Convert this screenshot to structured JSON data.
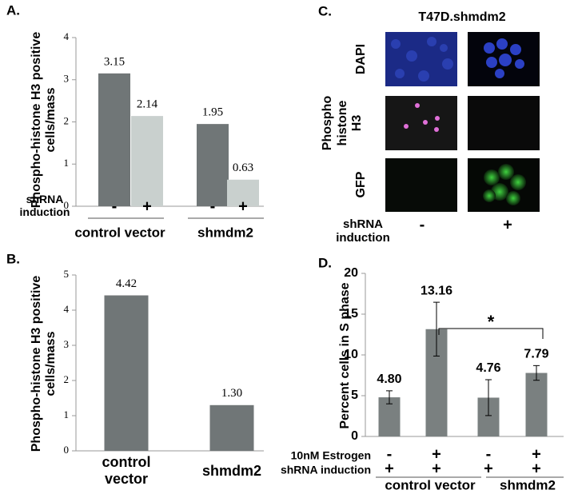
{
  "chart_data": [
    {
      "type": "bar",
      "panel": "A.",
      "ylabel": "Phospho-histone H3 positive cells/mass",
      "categories": [
        "control vector",
        "shmdm2"
      ],
      "row_label": "shRNA induction",
      "series": [
        {
          "name": "-",
          "color": "#707677",
          "values": [
            3.15,
            1.95
          ]
        },
        {
          "name": "+",
          "color": "#c9d0ce",
          "values": [
            2.14,
            0.63
          ]
        }
      ],
      "ylim": [
        0,
        4
      ],
      "yticks": [
        0,
        1,
        2,
        3,
        4
      ]
    },
    {
      "type": "bar",
      "panel": "B.",
      "ylabel": "Phospho-histone H3 positive cells/mass",
      "categories": [
        "control vector",
        "shmdm2"
      ],
      "values": [
        4.42,
        1.3
      ],
      "value_labels": [
        "4.42",
        "1.30"
      ],
      "color": "#707677",
      "ylim": [
        0,
        5
      ],
      "yticks": [
        0,
        1,
        2,
        3,
        4,
        5
      ]
    },
    {
      "type": "bar",
      "panel": "D.",
      "ylabel": "Percent cells in S phase",
      "values": [
        4.8,
        13.16,
        4.76,
        7.79
      ],
      "value_labels": [
        "4.80",
        "13.16",
        "4.76",
        "7.79"
      ],
      "errors": [
        0.8,
        3.3,
        2.2,
        0.9
      ],
      "color": "#7a8080",
      "rows": [
        {
          "label": "10nM Estrogen",
          "marks": [
            "-",
            "+",
            "-",
            "+"
          ]
        },
        {
          "label": "shRNA induction",
          "marks": [
            "+",
            "+",
            "+",
            "+"
          ]
        }
      ],
      "groups": [
        "control vector",
        "shmdm2"
      ],
      "annotation": "*",
      "ylim": [
        0,
        20
      ],
      "yticks": [
        0,
        5,
        10,
        15,
        20
      ]
    }
  ],
  "image_panel": {
    "panel": "C.",
    "title": "T47D.shmdm2",
    "rows": [
      "DAPI",
      "Phospho histone H3",
      "GFP"
    ],
    "column_label": "shRNA induction",
    "columns": [
      "-",
      "+"
    ]
  }
}
